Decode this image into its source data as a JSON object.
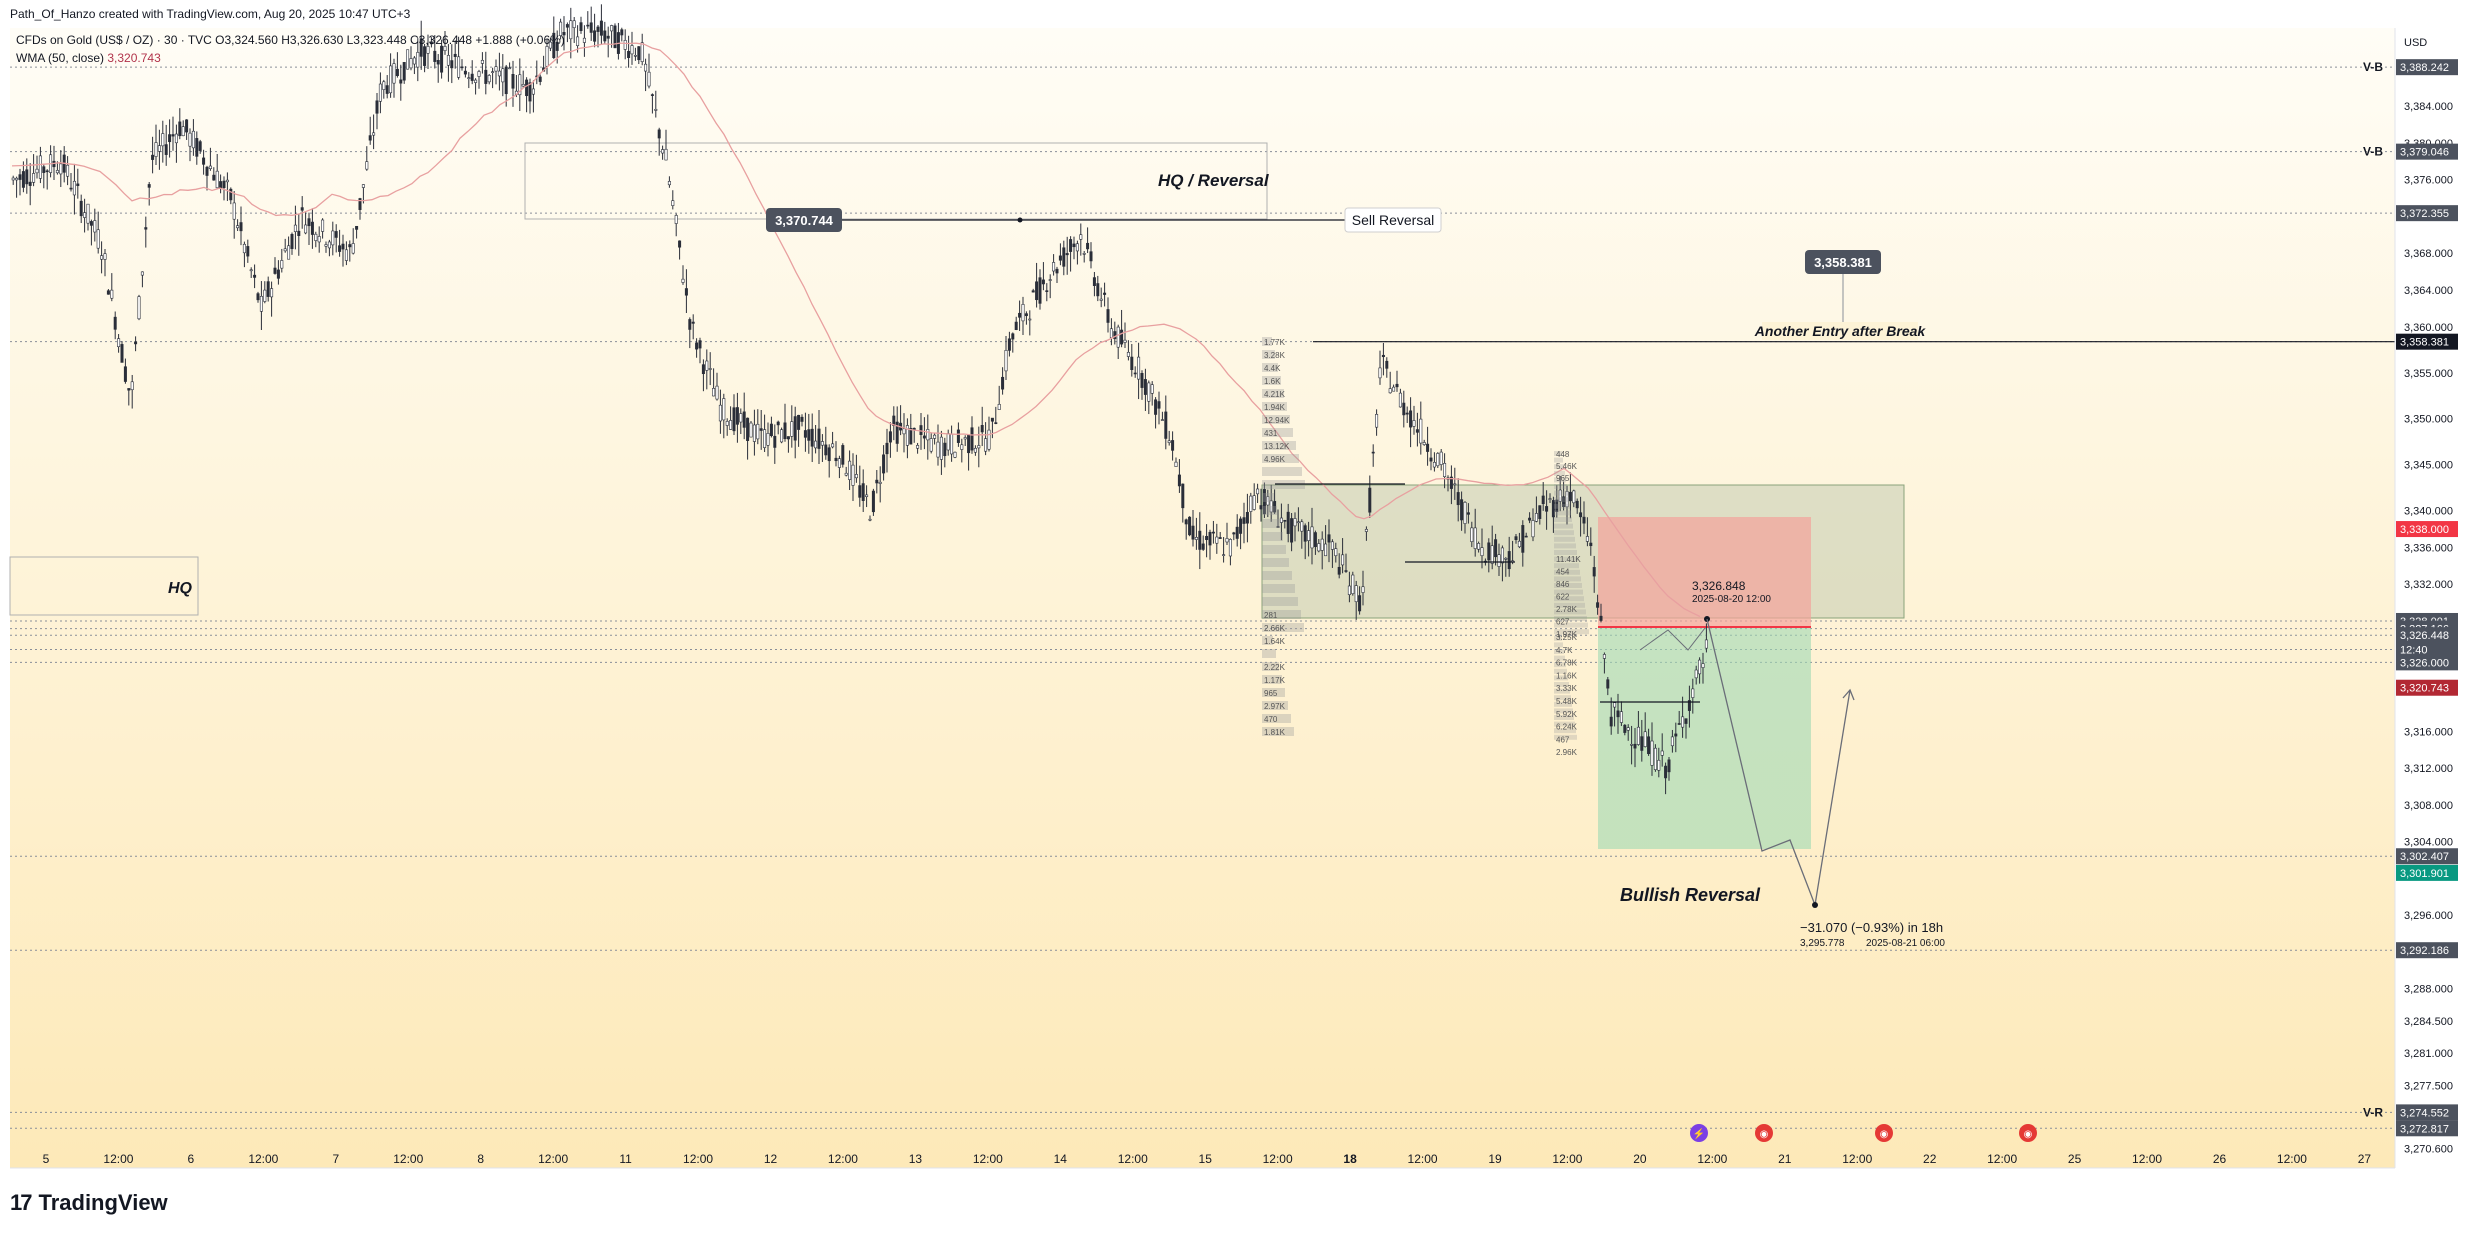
{
  "header": {
    "line1": "Path_Of_Hanzo created with TradingView.com, Aug 20, 2025 10:47 UTC+3",
    "symbol": "CFDs on Gold (US$ / OZ) · 30 · TVC",
    "ohlc": "O3,324.560  H3,326.630  L3,323.448  C3,326.448  +1.888 (+0.06%)",
    "wma_label": "WMA (50, close)",
    "wma_value": "3,320.743"
  },
  "currency": "USD",
  "logo": {
    "mark": "17",
    "text": "TradingView"
  },
  "colors": {
    "bg_top": "#fffdf6",
    "bg_bottom": "#fde9b8",
    "candle": "#2a2e39",
    "wma": "#e8a0a0",
    "red_zone": "#f4a39b",
    "green_zone": "#9fd8b4",
    "box_gray": "#b7c4a8",
    "tag_dark": "#4c525e",
    "tag_red": "#f23645",
    "tag_darkred": "#b22833",
    "tag_green": "#089981"
  },
  "chart_data": {
    "type": "candlestick",
    "symbol": "CFDs on Gold (US$ / OZ)",
    "timeframe": "30",
    "y_axis": {
      "ylim": [
        3268.5,
        3392.5
      ],
      "ticks": [
        "3,384.000",
        "3,380.000",
        "3,376.000",
        "3,368.000",
        "3,364.000",
        "3,360.000",
        "3,355.000",
        "3,350.000",
        "3,345.000",
        "3,340.000",
        "3,336.000",
        "3,332.000",
        "3,316.000",
        "3,312.000",
        "3,308.000",
        "3,304.000",
        "3,296.000",
        "3,288.000",
        "3,284.500",
        "3,281.000",
        "3,277.500",
        "3,270.600"
      ],
      "tick_values": [
        3384,
        3380,
        3376,
        3368,
        3364,
        3360,
        3355,
        3350,
        3345,
        3340,
        3336,
        3332,
        3316,
        3312,
        3308,
        3304,
        3296,
        3288,
        3284.5,
        3281,
        3277.5,
        3270.6
      ]
    },
    "x_axis": {
      "labels": [
        "5",
        "12:00",
        "6",
        "12:00",
        "7",
        "12:00",
        "8",
        "12:00",
        "11",
        "12:00",
        "12",
        "12:00",
        "13",
        "12:00",
        "14",
        "12:00",
        "15",
        "12:00",
        "18",
        "12:00",
        "19",
        "12:00",
        "20",
        "12:00",
        "21",
        "12:00",
        "22",
        "12:00",
        "25",
        "12:00",
        "26",
        "12:00",
        "27"
      ],
      "bold": [
        "18"
      ]
    },
    "price_tags": [
      {
        "label": "3,388.242",
        "value": 3388.24,
        "style": "dark"
      },
      {
        "label": "3,379.046",
        "value": 3379.05,
        "style": "dark"
      },
      {
        "label": "3,372.355",
        "value": 3372.36,
        "style": "dark"
      },
      {
        "label": "3,358.381",
        "value": 3358.38,
        "style": "black"
      },
      {
        "label": "3,338.000",
        "value": 3338.0,
        "style": "red"
      },
      {
        "label": "3,328.001",
        "value": 3328.0,
        "style": "dark"
      },
      {
        "label": "3,327.166",
        "value": 3327.17,
        "style": "dark"
      },
      {
        "label": "3,326.448",
        "value": 3326.45,
        "style": "dark"
      },
      {
        "label": "12:40",
        "value": 3324.9,
        "style": "dark"
      },
      {
        "label": "3,326.000",
        "value": 3323.5,
        "style": "dark"
      },
      {
        "label": "3,320.743",
        "value": 3320.74,
        "style": "darkred"
      },
      {
        "label": "3,302.407",
        "value": 3302.41,
        "style": "dark"
      },
      {
        "label": "3,301.901",
        "value": 3300.6,
        "style": "green"
      },
      {
        "label": "3,292.186",
        "value": 3292.19,
        "style": "dark"
      },
      {
        "label": "3,274.552",
        "value": 3274.55,
        "style": "dark"
      },
      {
        "label": "3,272.817",
        "value": 3272.82,
        "style": "dark"
      }
    ],
    "level_marks": [
      {
        "label": "V-B",
        "value": 3388.24
      },
      {
        "label": "V-B",
        "value": 3379.05
      },
      {
        "label": "V-R",
        "value": 3274.55
      }
    ],
    "annotations": {
      "hq_reversal": "HQ / Reversal",
      "sell_reversal": "Sell Reversal",
      "sell_price": "3,370.744",
      "entry_label": "Another Entry after Break",
      "entry_price": "3,358.381",
      "hq": "HQ",
      "bullish": "Bullish Reversal",
      "last_price": "3,326.848",
      "last_time": "2025-08-20 12:00",
      "projection": "−31.070 (−0.93%) in 18h",
      "proj_price": "3,295.778",
      "proj_time": "2025-08-21  06:00"
    },
    "volume_profile_left": [
      "1.77K",
      "3.28K",
      "4.4K",
      "1.6K",
      "4.21K",
      "1.94K",
      "12.94K",
      "431",
      "13.12K",
      "4.96K",
      "",
      "",
      "",
      "",
      "",
      "",
      "",
      "",
      "",
      "",
      "",
      "281",
      "2.66K",
      "1.64K",
      "",
      "2.22K",
      "1.17K",
      "965",
      "2.97K",
      "470",
      "1.81K"
    ],
    "volume_profile_right": [
      "448",
      "5.46K",
      "965",
      "",
      "",
      "",
      "",
      "",
      "",
      "",
      "",
      "",
      "",
      "",
      "",
      "",
      "",
      "",
      "",
      "",
      "",
      "",
      "",
      "",
      "",
      "",
      "",
      "",
      "",
      "",
      "",
      "",
      "",
      "",
      "3.25K",
      "4.7K",
      "6.78K",
      "1.16K",
      "3.33K",
      "5.48K",
      "5.92K",
      "6.24K",
      "467",
      "2.96K"
    ],
    "volume_profile_right_mid": [
      "11.41K",
      "454",
      "846",
      "622",
      "2.78K",
      "627",
      "1.97K"
    ]
  }
}
